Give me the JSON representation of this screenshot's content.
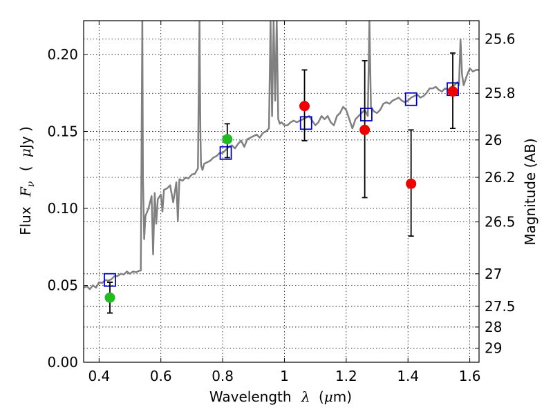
{
  "chart_data": {
    "type": "scatter",
    "title": "",
    "xlabel": "Wavelength",
    "xlabel_symbol": "λ",
    "xlabel_unit_open": "(",
    "xlabel_unit_mu": "μ",
    "xlabel_unit_rest": "m)",
    "ylabel": "Flux",
    "ylabel_symbol": "F",
    "ylabel_symbol_sub": "ν",
    "ylabel_unit_open": "(",
    "ylabel_unit_mu": "μ",
    "ylabel_unit_rest": "Jy )",
    "y2label": "Magnitude (AB)",
    "xlim": [
      0.35,
      1.63
    ],
    "ylim": [
      0.0,
      0.222
    ],
    "grid": true,
    "x_ticks": [
      {
        "value": 0.4,
        "label": "0.4"
      },
      {
        "value": 0.6,
        "label": "0.6"
      },
      {
        "value": 0.8,
        "label": "0.8"
      },
      {
        "value": 1.0,
        "label": "1"
      },
      {
        "value": 1.2,
        "label": "1.2"
      },
      {
        "value": 1.4,
        "label": "1.4"
      },
      {
        "value": 1.6,
        "label": "1.6"
      }
    ],
    "y_ticks": [
      {
        "value": 0.0,
        "label": "0.00"
      },
      {
        "value": 0.05,
        "label": "0.05"
      },
      {
        "value": 0.1,
        "label": "0.10"
      },
      {
        "value": 0.15,
        "label": "0.15"
      },
      {
        "value": 0.2,
        "label": "0.20"
      }
    ],
    "y2_ticks": [
      {
        "flux": 0.2101,
        "label": "25.6"
      },
      {
        "flux": 0.1748,
        "label": "25.8"
      },
      {
        "flux": 0.1445,
        "label": "26"
      },
      {
        "flux": 0.1202,
        "label": "26.2"
      },
      {
        "flux": 0.0912,
        "label": "26.5"
      },
      {
        "flux": 0.0575,
        "label": "27"
      },
      {
        "flux": 0.0363,
        "label": "27.5"
      },
      {
        "flux": 0.0229,
        "label": "28"
      },
      {
        "flux": 0.0091,
        "label": "29"
      }
    ],
    "y2_grid_flux": [
      0.2101,
      0.1748,
      0.1445,
      0.1202,
      0.0912,
      0.0575,
      0.0363,
      0.0229,
      0.0091
    ],
    "series": [
      {
        "kind": "model_spectrum",
        "color": "#808080",
        "x": [
          0.35,
          0.36,
          0.37,
          0.38,
          0.39,
          0.4,
          0.41,
          0.42,
          0.43,
          0.44,
          0.45,
          0.46,
          0.47,
          0.48,
          0.49,
          0.5,
          0.51,
          0.52,
          0.53,
          0.535,
          0.54,
          0.542,
          0.546,
          0.55,
          0.56,
          0.57,
          0.575,
          0.58,
          0.585,
          0.59,
          0.6,
          0.605,
          0.61,
          0.62,
          0.63,
          0.64,
          0.65,
          0.655,
          0.66,
          0.67,
          0.68,
          0.69,
          0.7,
          0.71,
          0.72,
          0.725,
          0.728,
          0.73,
          0.735,
          0.74,
          0.75,
          0.76,
          0.77,
          0.78,
          0.79,
          0.8,
          0.81,
          0.82,
          0.83,
          0.84,
          0.85,
          0.86,
          0.87,
          0.88,
          0.89,
          0.9,
          0.91,
          0.92,
          0.93,
          0.94,
          0.95,
          0.955,
          0.96,
          0.965,
          0.97,
          0.975,
          0.98,
          0.985,
          0.99,
          1.0,
          1.01,
          1.02,
          1.03,
          1.04,
          1.05,
          1.06,
          1.07,
          1.08,
          1.09,
          1.1,
          1.11,
          1.12,
          1.13,
          1.14,
          1.15,
          1.16,
          1.17,
          1.18,
          1.19,
          1.2,
          1.21,
          1.22,
          1.23,
          1.24,
          1.25,
          1.26,
          1.27,
          1.275,
          1.28,
          1.29,
          1.3,
          1.31,
          1.32,
          1.33,
          1.34,
          1.35,
          1.36,
          1.37,
          1.38,
          1.39,
          1.4,
          1.41,
          1.42,
          1.43,
          1.44,
          1.45,
          1.46,
          1.47,
          1.48,
          1.49,
          1.5,
          1.51,
          1.52,
          1.53,
          1.54,
          1.55,
          1.56,
          1.565,
          1.57,
          1.575,
          1.58,
          1.59,
          1.6,
          1.61,
          1.62,
          1.63
        ],
        "y": [
          0.0485,
          0.0495,
          0.0475,
          0.05,
          0.0485,
          0.052,
          0.0515,
          0.0535,
          0.053,
          0.054,
          0.056,
          0.056,
          0.0575,
          0.057,
          0.059,
          0.0575,
          0.059,
          0.0585,
          0.0595,
          0.0595,
          0.222,
          0.12,
          0.08,
          0.095,
          0.1,
          0.108,
          0.07,
          0.11,
          0.09,
          0.106,
          0.109,
          0.098,
          0.112,
          0.113,
          0.115,
          0.104,
          0.117,
          0.092,
          0.119,
          0.118,
          0.12,
          0.1195,
          0.122,
          0.1225,
          0.126,
          0.222,
          0.15,
          0.128,
          0.125,
          0.129,
          0.13,
          0.131,
          0.133,
          0.134,
          0.136,
          0.136,
          0.138,
          0.14,
          0.141,
          0.139,
          0.142,
          0.144,
          0.14,
          0.145,
          0.146,
          0.147,
          0.148,
          0.146,
          0.149,
          0.15,
          0.152,
          0.222,
          0.16,
          0.222,
          0.17,
          0.222,
          0.158,
          0.155,
          0.156,
          0.154,
          0.154,
          0.156,
          0.157,
          0.156,
          0.157,
          0.158,
          0.159,
          0.16,
          0.157,
          0.154,
          0.156,
          0.16,
          0.158,
          0.16,
          0.156,
          0.154,
          0.16,
          0.162,
          0.166,
          0.164,
          0.158,
          0.152,
          0.158,
          0.16,
          0.162,
          0.164,
          0.16,
          0.222,
          0.166,
          0.163,
          0.162,
          0.164,
          0.168,
          0.169,
          0.168,
          0.17,
          0.171,
          0.172,
          0.17,
          0.169,
          0.17,
          0.172,
          0.173,
          0.174,
          0.172,
          0.173,
          0.175,
          0.178,
          0.178,
          0.179,
          0.177,
          0.176,
          0.178,
          0.177,
          0.179,
          0.18,
          0.182,
          0.18,
          0.21,
          0.187,
          0.18,
          0.186,
          0.191,
          0.189,
          0.19,
          0.19
        ]
      },
      {
        "kind": "model_photometry",
        "marker": "open-square",
        "color": "#0000cc",
        "x": [
          0.435,
          0.81,
          1.07,
          1.265,
          1.41,
          1.545
        ],
        "y": [
          0.0535,
          0.136,
          0.1555,
          0.161,
          0.171,
          0.1775
        ]
      },
      {
        "kind": "observed_hst",
        "marker": "filled-circle",
        "color": "#22bb22",
        "x": [
          0.435,
          0.815
        ],
        "y": [
          0.042,
          0.145
        ],
        "yerr_low": [
          0.032,
          0.133
        ],
        "yerr_high": [
          0.052,
          0.155
        ]
      },
      {
        "kind": "observed_ir",
        "marker": "filled-circle",
        "color": "#ee0000",
        "x": [
          1.065,
          1.26,
          1.41,
          1.545
        ],
        "y": [
          0.1665,
          0.151,
          0.116,
          0.176
        ],
        "yerr_low": [
          0.144,
          0.107,
          0.082,
          0.152
        ],
        "yerr_high": [
          0.19,
          0.196,
          0.151,
          0.201
        ]
      }
    ]
  }
}
